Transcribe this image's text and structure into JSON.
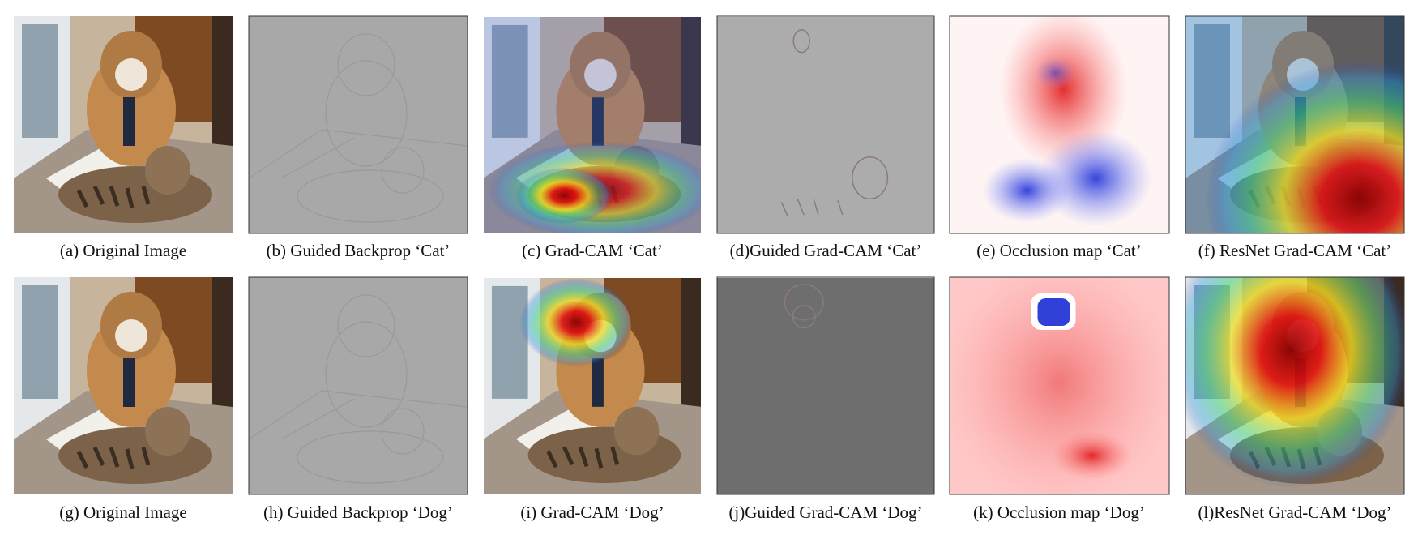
{
  "panels": [
    {
      "caption": "(a) Original Image"
    },
    {
      "caption": "(b) Guided Backprop ‘Cat’"
    },
    {
      "caption": "(c) Grad-CAM ‘Cat’"
    },
    {
      "caption": "(d)Guided Grad-CAM ‘Cat’"
    },
    {
      "caption": "(e) Occlusion map ‘Cat’"
    },
    {
      "caption": "(f) ResNet Grad-CAM ‘Cat’"
    },
    {
      "caption": "(g) Original Image"
    },
    {
      "caption": "(h) Guided Backprop ‘Dog’"
    },
    {
      "caption": "(i) Grad-CAM ‘Dog’"
    },
    {
      "caption": "(j)Guided Grad-CAM ‘Dog’"
    },
    {
      "caption": "(k) Occlusion map ‘Dog’"
    },
    {
      "caption": "(l)ResNet Grad-CAM ‘Dog’"
    }
  ]
}
